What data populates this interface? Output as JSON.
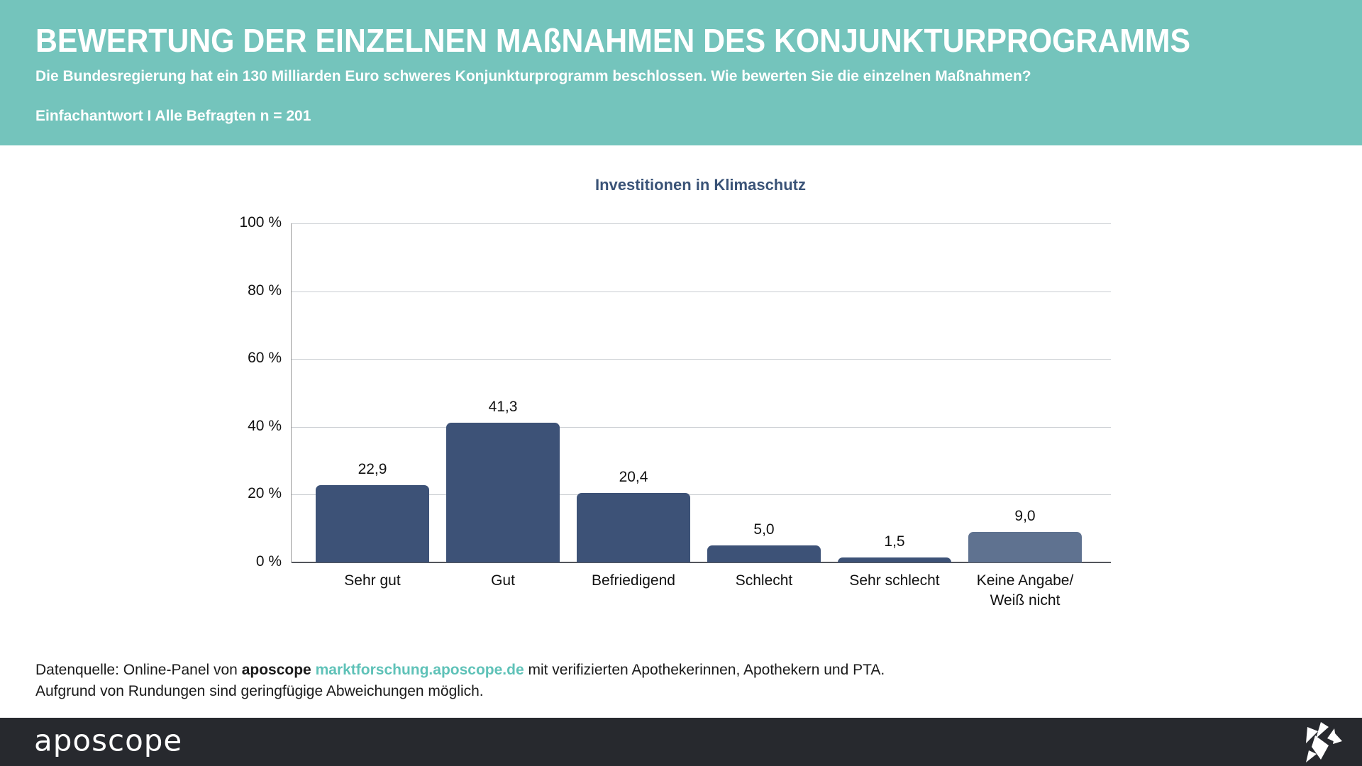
{
  "header": {
    "title": "BEWERTUNG DER EINZELNEN MAßNAHMEN DES KONJUNKTURPROGRAMMS",
    "subtitle": "Die Bundesregierung hat ein 130 Milliarden Euro schweres Konjunkturprogramm beschlossen. Wie bewerten Sie die einzelnen Maßnahmen?",
    "meta": "Einfachantwort I Alle Befragten n = 201"
  },
  "chart_data": {
    "type": "bar",
    "title": "Investitionen in Klimaschutz",
    "categories": [
      "Sehr gut",
      "Gut",
      "Befriedigend",
      "Schlecht",
      "Sehr schlecht",
      "Keine Angabe/\nWeiß nicht"
    ],
    "values": [
      22.9,
      41.3,
      20.4,
      5.0,
      1.5,
      9.0
    ],
    "value_labels": [
      "22,9",
      "41,3",
      "20,4",
      "5,0",
      "1,5",
      "9,0"
    ],
    "bar_colors": [
      "#3d5277",
      "#3d5277",
      "#3d5277",
      "#3d5277",
      "#3d5277",
      "#5f7290"
    ],
    "y_ticks": [
      "100 %",
      "80 %",
      "60 %",
      "40 %",
      "20 %",
      "0 %"
    ],
    "ylim": [
      0,
      100
    ],
    "grid": true,
    "legend": "none",
    "xlabel": "",
    "ylabel": ""
  },
  "footer": {
    "line1_prefix": "Datenquelle: Online-Panel von",
    "line1_brand": "aposcope",
    "line1_link": "marktforschung.aposcope.de",
    "line1_suffix": "mit verifizierten Apothekerinnen, Apothekern und PTA.",
    "line2": "Aufgrund von Rundungen sind geringfügige Abweichungen möglich."
  },
  "bottom_bar": {
    "logo_text": "aposcope"
  },
  "colors": {
    "header_bg": "#74c4bc",
    "chart_title": "#3a5377",
    "bar_primary": "#3d5277",
    "bar_neutral": "#5f7290",
    "link_teal": "#5fc2b8",
    "bottom_bar_bg": "#27292e"
  }
}
